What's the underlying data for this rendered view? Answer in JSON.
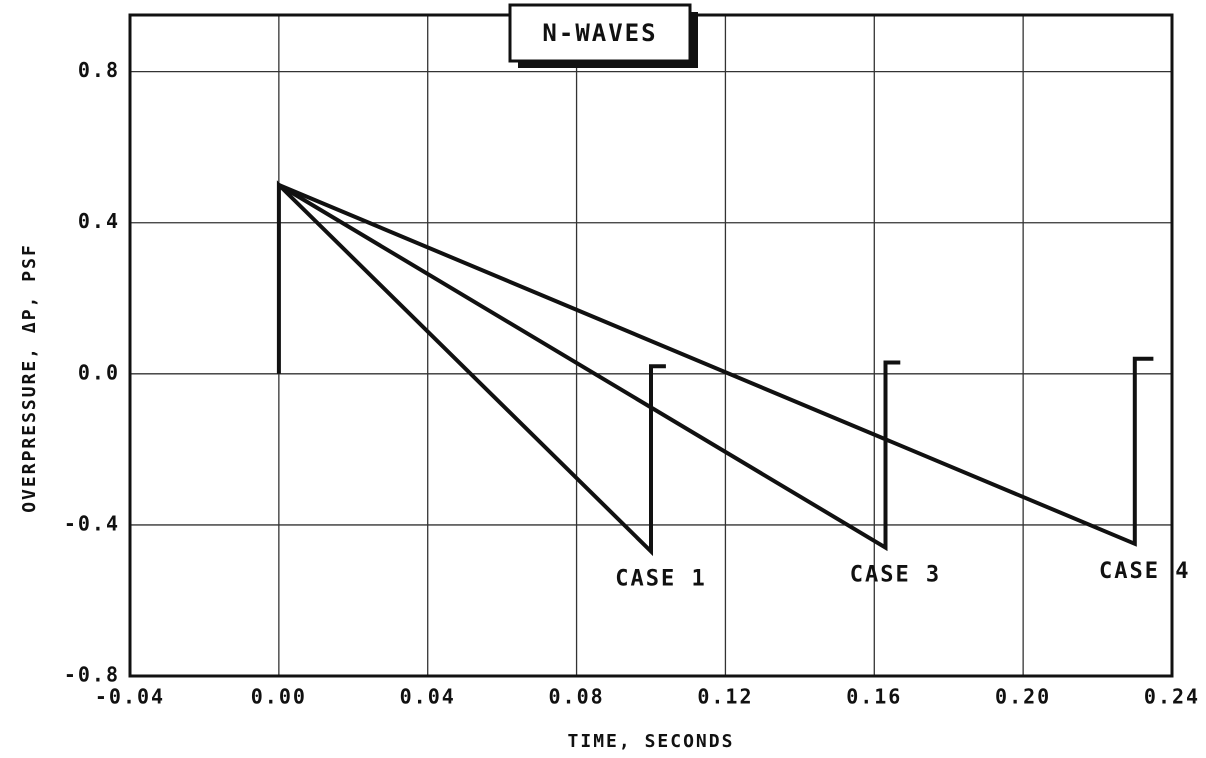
{
  "chart_data": {
    "type": "line",
    "title": "N-WAVES",
    "x_label": "TIME, SECONDS",
    "y_label": "OVERPRESSURE, ΔP, PSF",
    "xlim": [
      -0.04,
      0.24
    ],
    "ylim": [
      -0.8,
      0.95
    ],
    "xticks": [
      {
        "value": -0.04,
        "label": "-0.04"
      },
      {
        "value": 0,
        "label": "0.00"
      },
      {
        "value": 0.04,
        "label": "0.04"
      },
      {
        "value": 0.08,
        "label": "0.08"
      },
      {
        "value": 0.12,
        "label": "0.12"
      },
      {
        "value": 0.16,
        "label": "0.16"
      },
      {
        "value": 0.2,
        "label": "0.20"
      },
      {
        "value": 0.24,
        "label": "0.24"
      }
    ],
    "yticks": [
      -0.8,
      -0.4,
      {
        "value": 0,
        "label": "0.0"
      },
      0.4,
      0.8
    ],
    "grid": true,
    "series": [
      {
        "name": "CASE 1",
        "color": "#111111",
        "x": [
          0,
          0,
          0.1,
          0.1,
          0.104
        ],
        "values": [
          0,
          0.5,
          -0.47,
          0.02,
          0.02
        ]
      },
      {
        "name": "CASE 3",
        "color": "#111111",
        "x": [
          0,
          0.163,
          0.163,
          0.167
        ],
        "values": [
          0.5,
          -0.46,
          0.03,
          0.03
        ]
      },
      {
        "name": "CASE 4",
        "color": "#111111",
        "x": [
          0,
          0.23,
          0.23,
          0.235
        ],
        "values": [
          0.5,
          -0.45,
          0.04,
          0.04
        ]
      }
    ]
  }
}
